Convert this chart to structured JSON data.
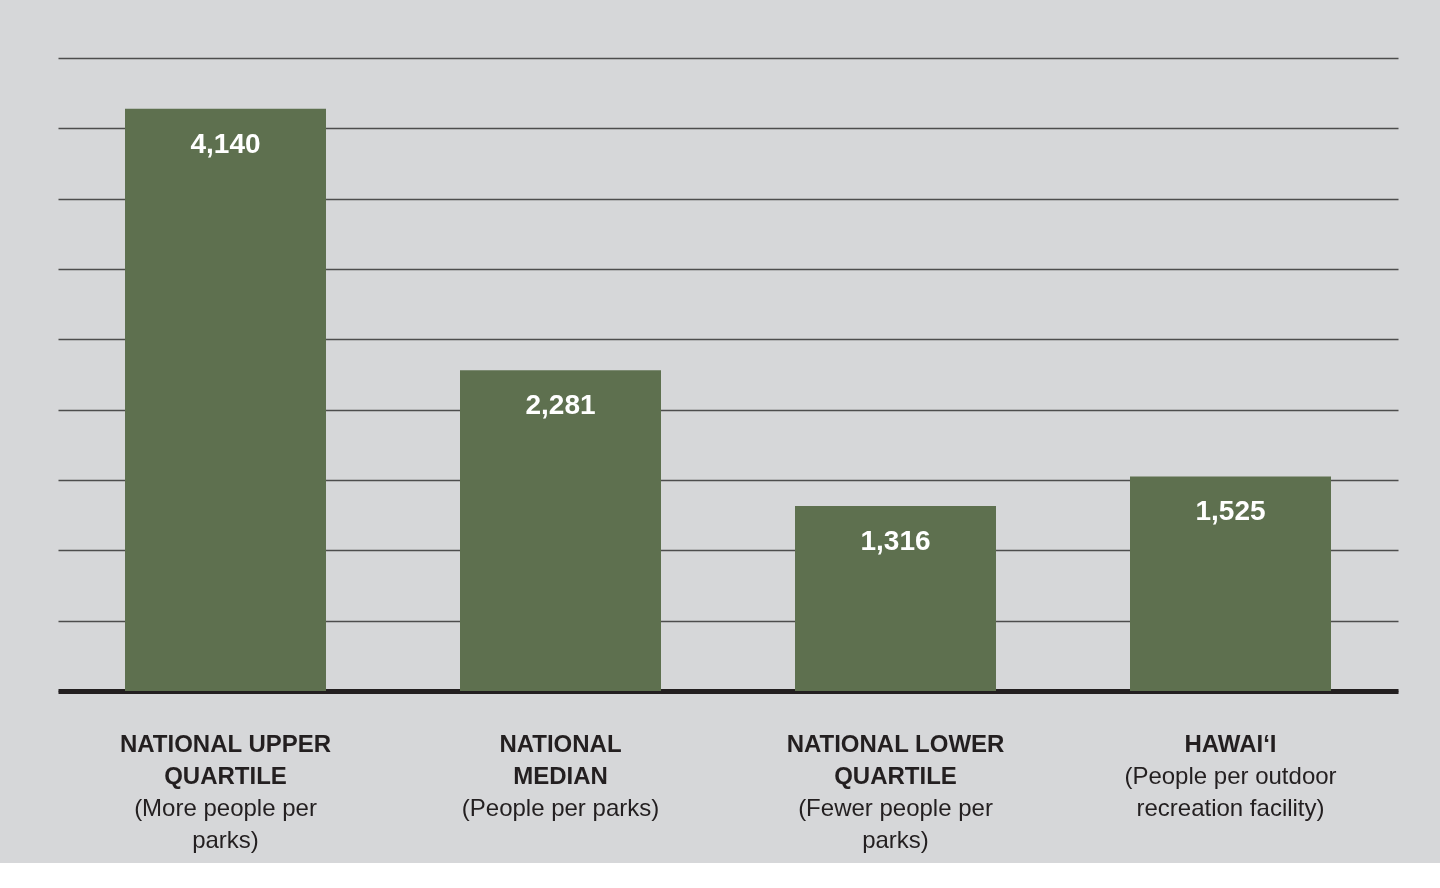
{
  "chart_data": {
    "type": "bar",
    "categories": [
      "NATIONAL UPPER\nQUARTILE\n(More people per\nparks)",
      "NATIONAL\nMEDIAN\n(People per parks)",
      "NATIONAL LOWER\nQUARTILE\n(Fewer people per\nparks)",
      "HAWAI‘I\n(People per outdoor\nrecreation facility)"
    ],
    "values": [
      4140,
      2281,
      1316,
      1525
    ],
    "value_labels": [
      "4,140",
      "2,281",
      "1,316",
      "1,525"
    ],
    "color": "#5e704f",
    "grid": true
  }
}
